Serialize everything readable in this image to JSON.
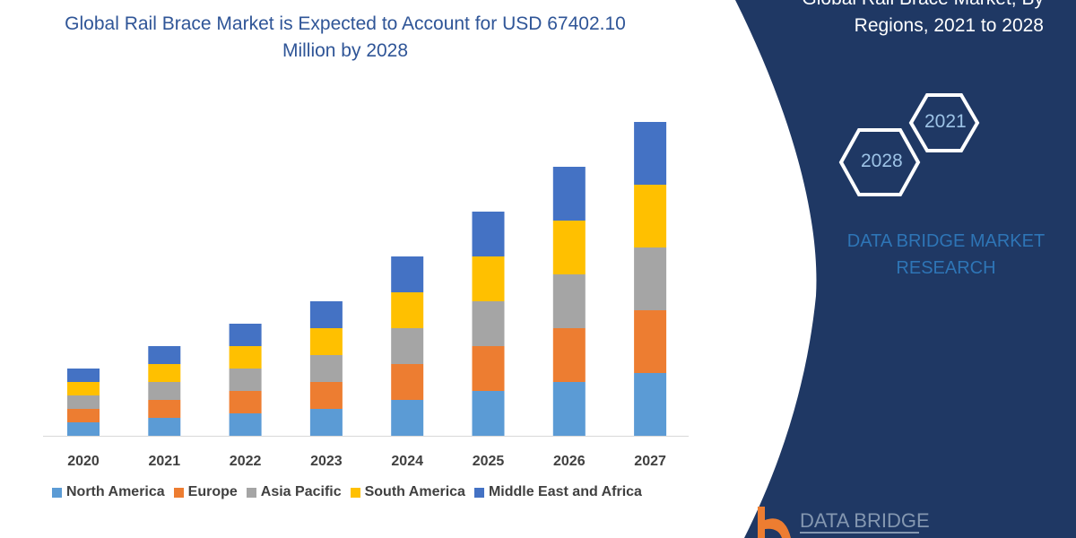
{
  "title": "Global Rail Brace Market is Expected to Account for USD 67402.10 Million by 2028",
  "side_panel": {
    "title_line1": "Global Rail Brace Market, By",
    "title_line2": "Regions, 2021 to 2028",
    "hex_year_a": "2021",
    "hex_year_b": "2028",
    "brand": "DATA BRIDGE MARKET RESEARCH",
    "logo_text": "DATA BRIDGE",
    "panel_color": "#1f3864"
  },
  "chart_data": {
    "type": "bar",
    "stacked": true,
    "title": "Global Rail Brace Market is Expected to Account for USD 67402.10 Million by 2028",
    "categories": [
      "2020",
      "2021",
      "2022",
      "2023",
      "2024",
      "2025",
      "2026",
      "2027"
    ],
    "series": [
      {
        "name": "North America",
        "color": "#5b9bd5",
        "values": [
          15,
          20,
          25,
          30,
          40,
          50,
          60,
          70
        ]
      },
      {
        "name": "Europe",
        "color": "#ed7d31",
        "values": [
          15,
          20,
          25,
          30,
          40,
          50,
          60,
          70
        ]
      },
      {
        "name": "Asia Pacific",
        "color": "#a5a5a5",
        "values": [
          15,
          20,
          25,
          30,
          40,
          50,
          60,
          70
        ]
      },
      {
        "name": "South America",
        "color": "#ffc000",
        "values": [
          15,
          20,
          25,
          30,
          40,
          50,
          60,
          70
        ]
      },
      {
        "name": "Middle East and Africa",
        "color": "#4472c4",
        "values": [
          15,
          20,
          25,
          30,
          40,
          50,
          60,
          70
        ]
      }
    ],
    "xlabel": "",
    "ylabel": "",
    "y_axis_shown": false,
    "grid": false,
    "legend": "bottom"
  }
}
